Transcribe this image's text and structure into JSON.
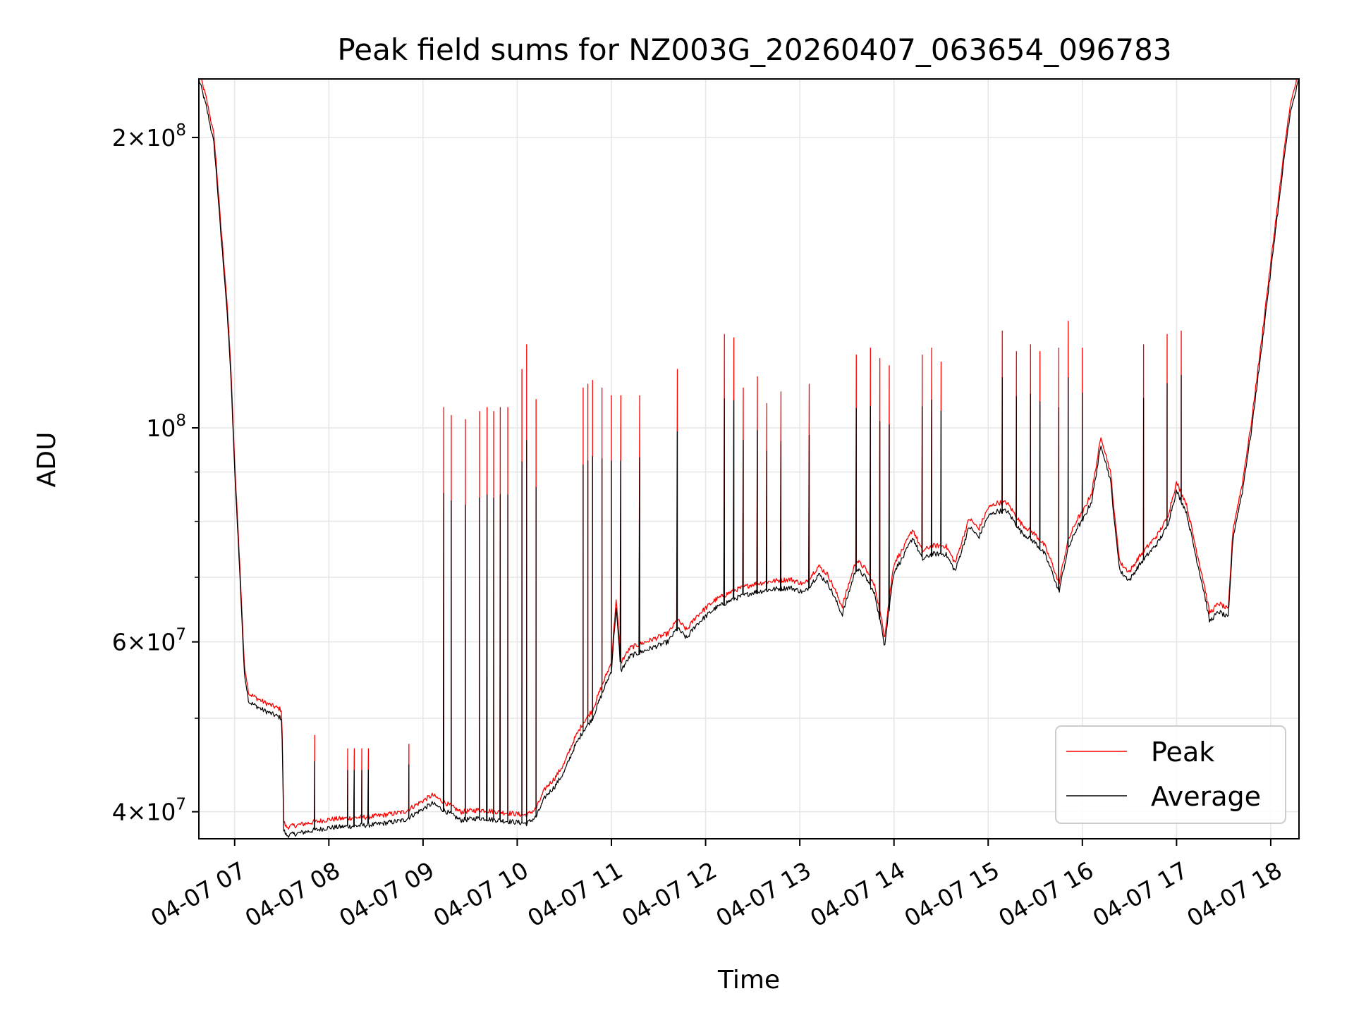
{
  "chart_data": {
    "type": "line",
    "title": "Peak field sums for NZ003G_20260407_063654_096783",
    "xlabel": "Time",
    "ylabel": "ADU",
    "yscale": "log",
    "ylim": [
      37500000,
      230000000
    ],
    "xlim": [
      6.62,
      18.3
    ],
    "grid": true,
    "legend_position": "lower-right",
    "x_ticks": [
      {
        "value": 7,
        "label": "04-07 07"
      },
      {
        "value": 8,
        "label": "04-07 08"
      },
      {
        "value": 9,
        "label": "04-07 09"
      },
      {
        "value": 10,
        "label": "04-07 10"
      },
      {
        "value": 11,
        "label": "04-07 11"
      },
      {
        "value": 12,
        "label": "04-07 12"
      },
      {
        "value": 13,
        "label": "04-07 13"
      },
      {
        "value": 14,
        "label": "04-07 14"
      },
      {
        "value": 15,
        "label": "04-07 15"
      },
      {
        "value": 16,
        "label": "04-07 16"
      },
      {
        "value": 17,
        "label": "04-07 17"
      },
      {
        "value": 18,
        "label": "04-07 18"
      }
    ],
    "y_ticks_major": [
      {
        "value": 40000000,
        "mant": "4×10",
        "exp": "7"
      },
      {
        "value": 60000000,
        "mant": "6×10",
        "exp": "7"
      },
      {
        "value": 100000000,
        "mant": "10",
        "exp": "8"
      },
      {
        "value": 200000000,
        "mant": "2×10",
        "exp": "8"
      }
    ],
    "y_ticks_minor": [
      50000000,
      70000000,
      80000000,
      90000000
    ],
    "series": [
      {
        "name": "Average",
        "color": "#000000",
        "points": [
          [
            6.62,
            230
          ],
          [
            6.7,
            215
          ],
          [
            6.78,
            197
          ],
          [
            6.85,
            160
          ],
          [
            6.9,
            140
          ],
          [
            6.95,
            118
          ],
          [
            7.0,
            90
          ],
          [
            7.05,
            72
          ],
          [
            7.1,
            56
          ],
          [
            7.15,
            52
          ],
          [
            7.3,
            51
          ],
          [
            7.5,
            50
          ],
          [
            7.52,
            38.3
          ],
          [
            7.55,
            37.8
          ],
          [
            7.8,
            38.2
          ],
          [
            8.0,
            38.5
          ],
          [
            8.5,
            38.8
          ],
          [
            8.8,
            39.2
          ],
          [
            9.1,
            40.8
          ],
          [
            9.25,
            40.0
          ],
          [
            9.4,
            39.2
          ],
          [
            9.6,
            39.4
          ],
          [
            9.9,
            39.1
          ],
          [
            10.1,
            38.9
          ],
          [
            10.2,
            39.5
          ],
          [
            10.3,
            41.5
          ],
          [
            10.4,
            42.5
          ],
          [
            10.5,
            44
          ],
          [
            10.6,
            46.5
          ],
          [
            10.7,
            48.5
          ],
          [
            10.8,
            50
          ],
          [
            10.9,
            53
          ],
          [
            11.0,
            56
          ],
          [
            11.05,
            65
          ],
          [
            11.1,
            56
          ],
          [
            11.2,
            58
          ],
          [
            11.4,
            59
          ],
          [
            11.6,
            60
          ],
          [
            11.7,
            62
          ],
          [
            11.8,
            60.5
          ],
          [
            11.9,
            62.5
          ],
          [
            12.1,
            65
          ],
          [
            12.3,
            66.5
          ],
          [
            12.5,
            67.5
          ],
          [
            12.7,
            68
          ],
          [
            12.9,
            68.3
          ],
          [
            13.05,
            67.5
          ],
          [
            13.2,
            70.5
          ],
          [
            13.3,
            69
          ],
          [
            13.45,
            64
          ],
          [
            13.6,
            71.5
          ],
          [
            13.7,
            70
          ],
          [
            13.8,
            67
          ],
          [
            13.9,
            59.5
          ],
          [
            14.0,
            71
          ],
          [
            14.1,
            73.5
          ],
          [
            14.2,
            77
          ],
          [
            14.3,
            73
          ],
          [
            14.4,
            74
          ],
          [
            14.55,
            74
          ],
          [
            14.65,
            71
          ],
          [
            14.8,
            79
          ],
          [
            14.9,
            77
          ],
          [
            15.0,
            81
          ],
          [
            15.1,
            82
          ],
          [
            15.2,
            82
          ],
          [
            15.35,
            78
          ],
          [
            15.5,
            76
          ],
          [
            15.6,
            74
          ],
          [
            15.7,
            70
          ],
          [
            15.75,
            67.5
          ],
          [
            15.85,
            75
          ],
          [
            15.95,
            79
          ],
          [
            16.0,
            80
          ],
          [
            16.1,
            84
          ],
          [
            16.2,
            96
          ],
          [
            16.3,
            88
          ],
          [
            16.35,
            78
          ],
          [
            16.4,
            71
          ],
          [
            16.5,
            69.5
          ],
          [
            16.6,
            72
          ],
          [
            16.7,
            74
          ],
          [
            16.8,
            76
          ],
          [
            16.9,
            79
          ],
          [
            17.0,
            86
          ],
          [
            17.1,
            82
          ],
          [
            17.2,
            74
          ],
          [
            17.3,
            67
          ],
          [
            17.35,
            63
          ],
          [
            17.45,
            64.5
          ],
          [
            17.55,
            63.5
          ],
          [
            17.6,
            77
          ],
          [
            17.7,
            86
          ],
          [
            17.8,
            100
          ],
          [
            17.9,
            120
          ],
          [
            18.0,
            145
          ],
          [
            18.1,
            175
          ],
          [
            18.2,
            210
          ],
          [
            18.3,
            230
          ]
        ]
      },
      {
        "name": "Peak",
        "color": "#ff0000",
        "spikes": [
          [
            7.85,
            48
          ],
          [
            8.2,
            46.5
          ],
          [
            8.27,
            46.5
          ],
          [
            8.35,
            46.5
          ],
          [
            8.42,
            46.5
          ],
          [
            8.85,
            47
          ],
          [
            9.22,
            105
          ],
          [
            9.3,
            103
          ],
          [
            9.45,
            102
          ],
          [
            9.6,
            104
          ],
          [
            9.68,
            105
          ],
          [
            9.75,
            104
          ],
          [
            9.82,
            105
          ],
          [
            9.9,
            105
          ],
          [
            10.05,
            115
          ],
          [
            10.1,
            122
          ],
          [
            10.2,
            107
          ],
          [
            10.7,
            110
          ],
          [
            10.75,
            111
          ],
          [
            10.8,
            112
          ],
          [
            10.9,
            110
          ],
          [
            11.0,
            108
          ],
          [
            11.1,
            108
          ],
          [
            11.3,
            108
          ],
          [
            11.7,
            115
          ],
          [
            12.2,
            125
          ],
          [
            12.3,
            124
          ],
          [
            12.4,
            110
          ],
          [
            12.55,
            113
          ],
          [
            12.65,
            106
          ],
          [
            12.8,
            109
          ],
          [
            13.1,
            111
          ],
          [
            13.6,
            119
          ],
          [
            13.75,
            121
          ],
          [
            13.85,
            118
          ],
          [
            13.95,
            116
          ],
          [
            14.3,
            119
          ],
          [
            14.4,
            121
          ],
          [
            14.5,
            117
          ],
          [
            15.15,
            126
          ],
          [
            15.3,
            120
          ],
          [
            15.45,
            122
          ],
          [
            15.55,
            120
          ],
          [
            15.75,
            121
          ],
          [
            15.85,
            129
          ],
          [
            16.0,
            121
          ],
          [
            16.65,
            122
          ],
          [
            16.9,
            125
          ],
          [
            17.05,
            126
          ]
        ]
      }
    ]
  },
  "legend": {
    "items": [
      {
        "label": "Peak",
        "color": "#ff0000"
      },
      {
        "label": "Average",
        "color": "#000000"
      }
    ]
  }
}
